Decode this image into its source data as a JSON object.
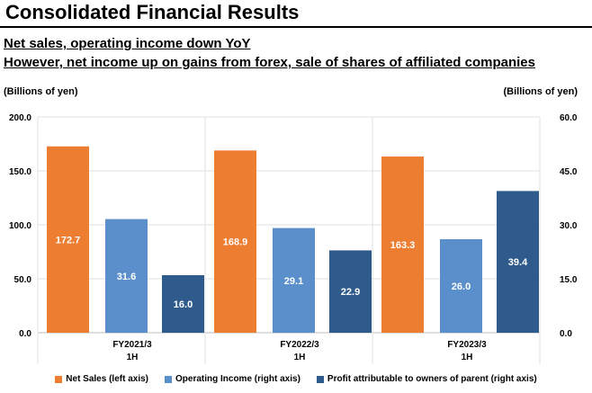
{
  "title": "Consolidated Financial Results",
  "subtitle_line1": "Net sales, operating income down YoY",
  "subtitle_line2": "However, net income up on gains from forex, sale of  shares of affiliated companies",
  "colors": {
    "net_sales": "#ED7D31",
    "operating_income": "#5B8FCB",
    "profit": "#2F5A8C",
    "grid": "#E2E2E2",
    "axis": "#BFBFBF"
  },
  "chart_data": {
    "type": "bar",
    "categories": [
      [
        "FY2021/3",
        "1H"
      ],
      [
        "FY2022/3",
        "1H"
      ],
      [
        "FY2023/3",
        "1H"
      ]
    ],
    "series": [
      {
        "name": "Net Sales (left axis)",
        "axis": "left",
        "values": [
          172.7,
          168.9,
          163.3
        ],
        "labels": [
          "172.7",
          "168.9",
          "163.3"
        ]
      },
      {
        "name": "Operating Income (right axis)",
        "axis": "right",
        "values": [
          31.6,
          29.1,
          26.0
        ],
        "labels": [
          "31.6",
          "29.1",
          "26.0"
        ]
      },
      {
        "name": "Profit attributable to owners of parent (right axis)",
        "axis": "right",
        "values": [
          16.0,
          22.9,
          39.4
        ],
        "labels": [
          "16.0",
          "22.9",
          "39.4"
        ]
      }
    ],
    "ylabel_left": "(Billions of yen)",
    "ylabel_right": "(Billions of yen)",
    "ylim_left": [
      0,
      200
    ],
    "ylim_right": [
      0,
      60
    ],
    "yticks_left": [
      "0.0",
      "50.0",
      "100.0",
      "150.0",
      "200.0"
    ],
    "yticks_right": [
      "0.0",
      "15.0",
      "30.0",
      "45.0",
      "60.0"
    ],
    "grid": true,
    "legend_position": "bottom"
  }
}
